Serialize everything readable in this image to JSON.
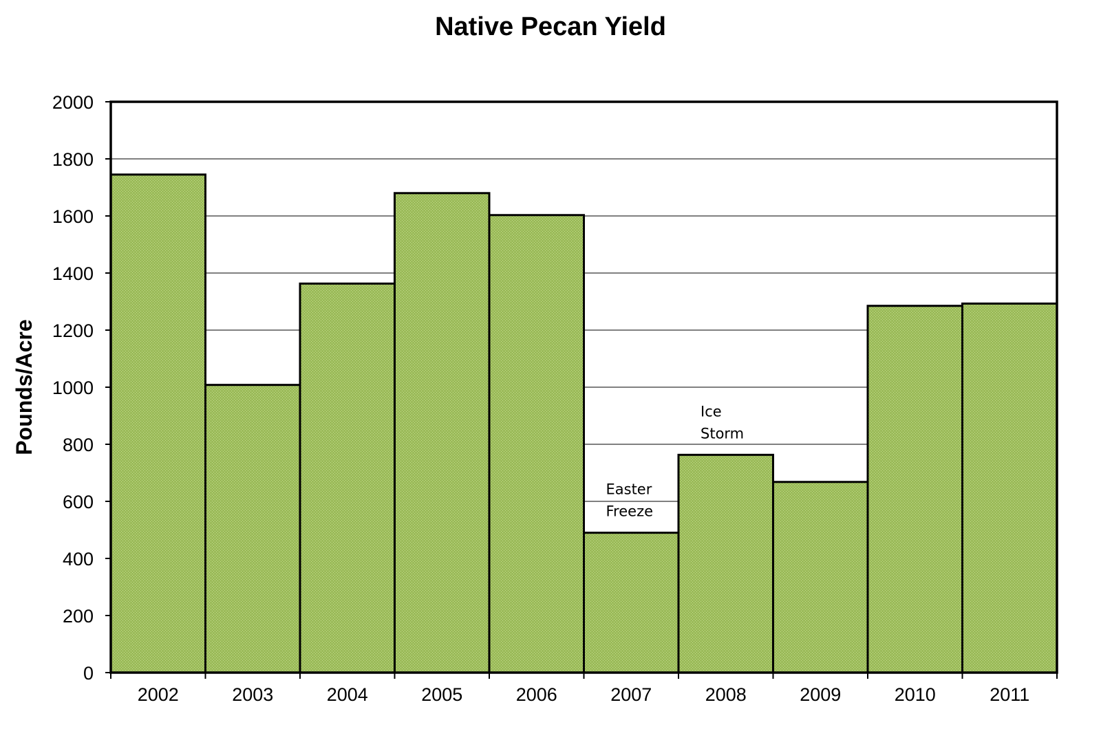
{
  "chart_data": {
    "type": "bar",
    "title": "Native Pecan Yield",
    "xlabel": "",
    "ylabel": "Pounds/Acre",
    "categories": [
      "2002",
      "2003",
      "2004",
      "2005",
      "2006",
      "2007",
      "2008",
      "2009",
      "2010",
      "2011"
    ],
    "values": [
      1745,
      1008,
      1363,
      1680,
      1603,
      490,
      763,
      668,
      1285,
      1293
    ],
    "ylim": [
      0,
      2000
    ],
    "yticks": [
      0,
      200,
      400,
      600,
      800,
      1000,
      1200,
      1400,
      1600,
      1800,
      2000
    ],
    "grid": true,
    "legend": "none",
    "bar_color": "#9bbb59",
    "annotations": [
      {
        "category": "2007",
        "lines": [
          "Easter",
          "Freeze"
        ]
      },
      {
        "category": "2008",
        "lines": [
          "Ice",
          "Storm"
        ]
      }
    ]
  }
}
